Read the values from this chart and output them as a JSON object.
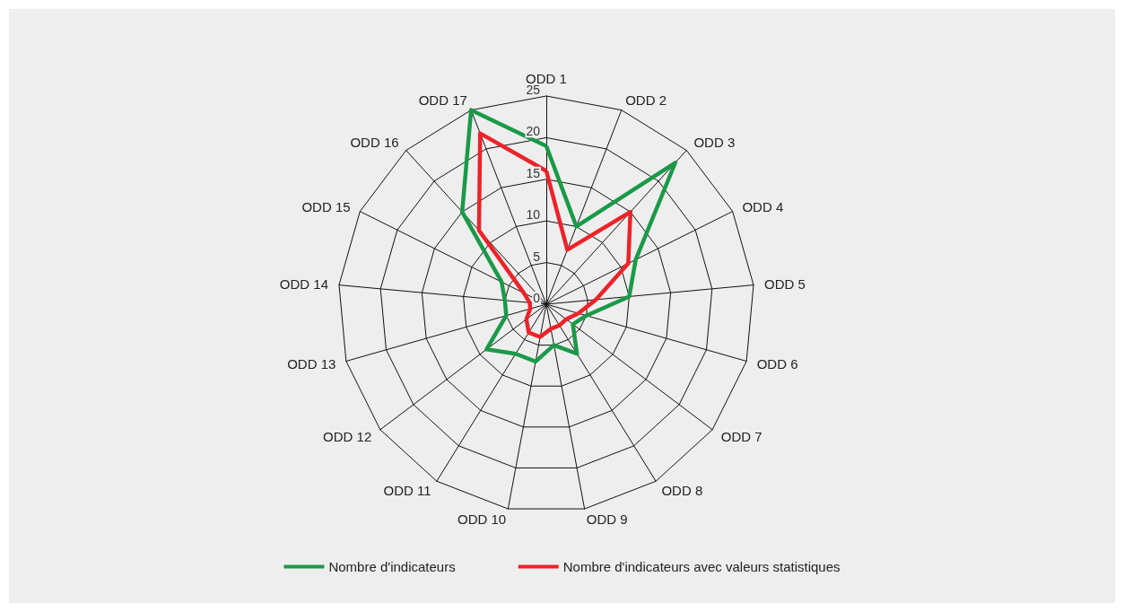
{
  "chart_data": {
    "type": "radar",
    "categories": [
      "ODD 1",
      "ODD 2",
      "ODD 3",
      "ODD 4",
      "ODD 5",
      "ODD 6",
      "ODD 7",
      "ODD 8",
      "ODD 9",
      "ODD 10",
      "ODD 11",
      "ODD 12",
      "ODD 13",
      "ODD 14",
      "ODD 15",
      "ODD 16",
      "ODD 17"
    ],
    "series": [
      {
        "name": "Nombre d'indicateurs",
        "color": "#1a9a48",
        "values": [
          19,
          10,
          23,
          12,
          10,
          5,
          4,
          7,
          5,
          7,
          7,
          9,
          5,
          5,
          6,
          15,
          25
        ]
      },
      {
        "name": "Nombre d'indicateurs avec valeurs statistiques",
        "color": "#ee2229",
        "values": [
          16,
          7,
          15,
          11,
          6,
          4,
          3,
          3,
          3,
          4,
          4,
          3,
          2,
          2,
          3,
          12,
          22
        ]
      }
    ],
    "ylim": [
      0,
      25
    ],
    "yticks": [
      0,
      5,
      10,
      15,
      20,
      25
    ],
    "legend": "bottom",
    "marker": "none"
  }
}
